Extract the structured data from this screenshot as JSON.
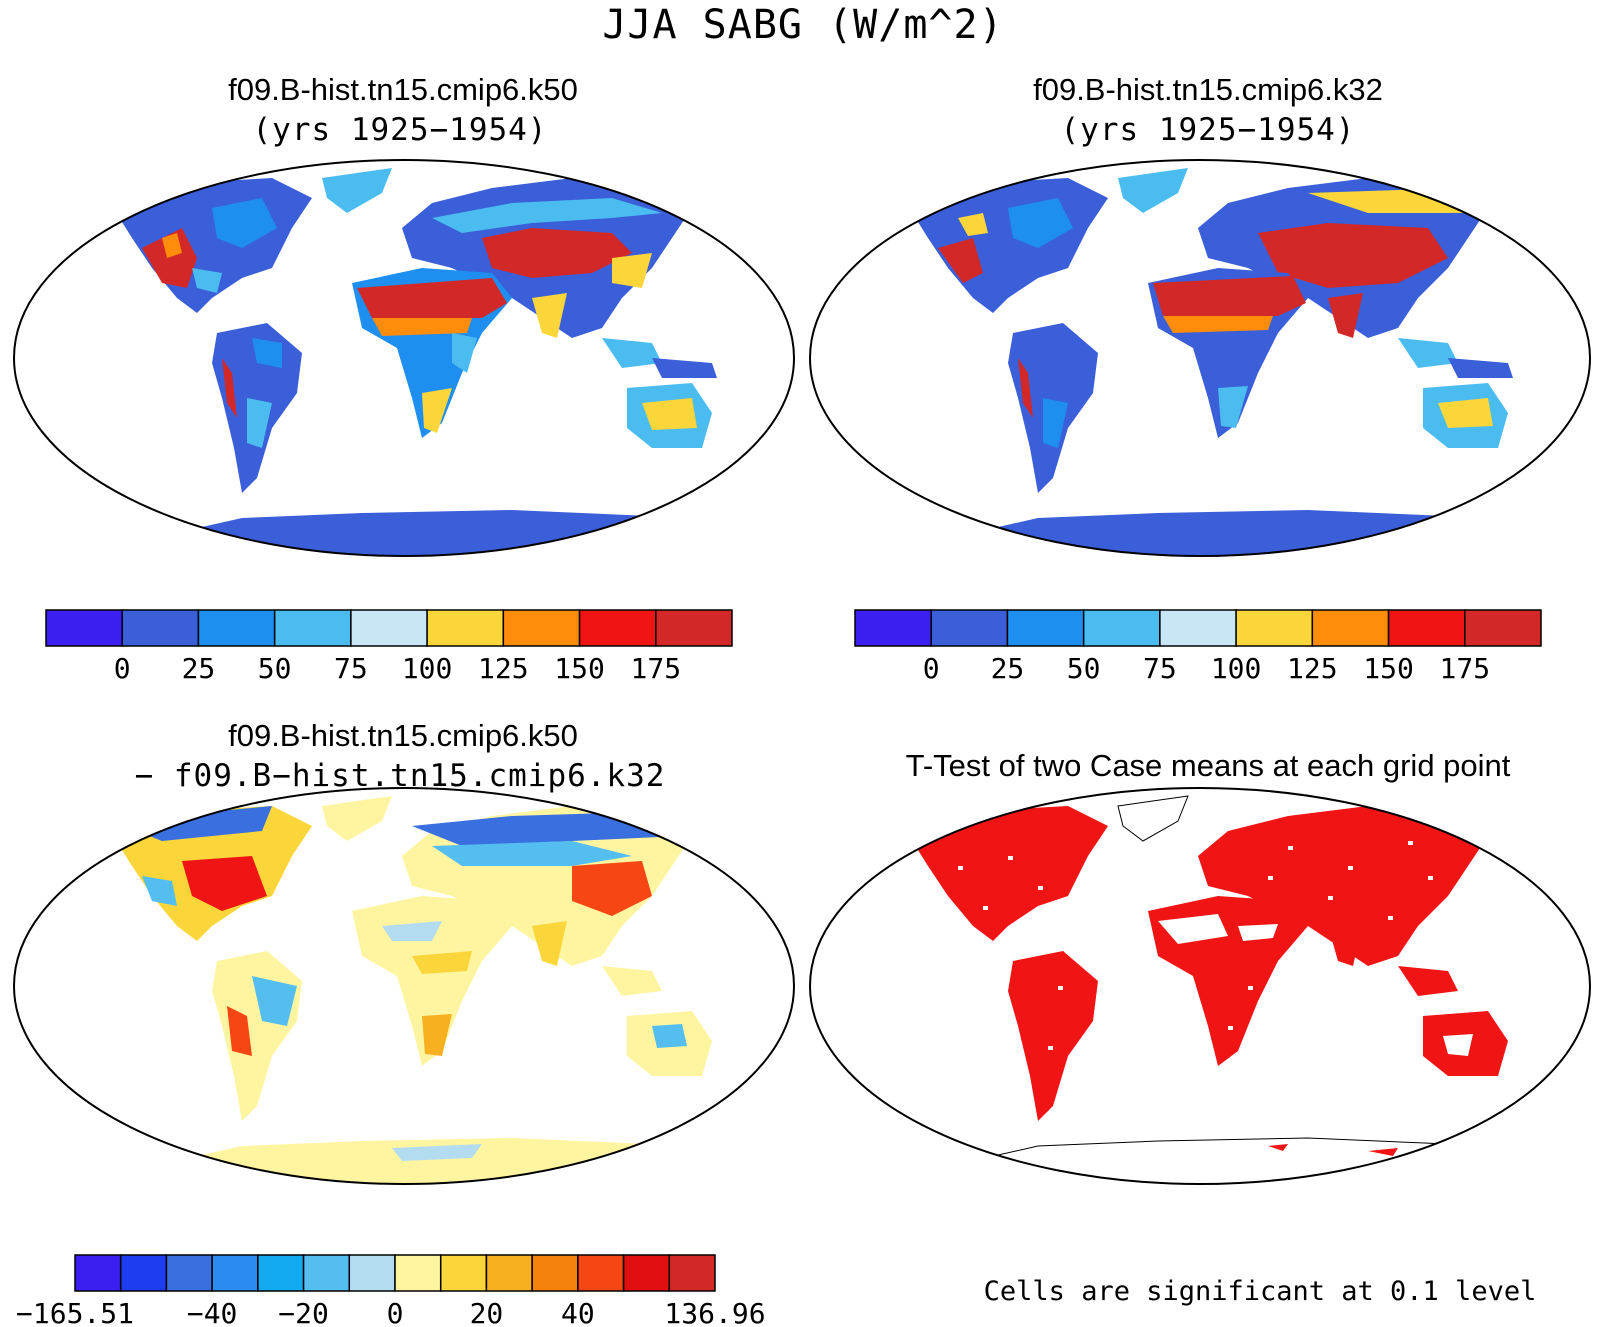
{
  "title": "JJA SABG (W/m^2)",
  "panels": [
    {
      "title": "f09.B-hist.tn15.cmip6.k50",
      "subtitle": "(yrs 1925−1954)"
    },
    {
      "title": "f09.B-hist.tn15.cmip6.k32",
      "subtitle": "(yrs 1925−1954)"
    },
    {
      "title": "f09.B-hist.tn15.cmip6.k50",
      "subtitle": "− f09.B−hist.tn15.cmip6.k32"
    },
    {
      "title": "T-Test of two Case means at each grid point",
      "subtitle": ""
    }
  ],
  "colorbars": {
    "abs": {
      "colors": [
        "#3b1ef0",
        "#3a5fd9",
        "#1e8ff0",
        "#4bbcf0",
        "#c8e6f5",
        "#fbd63a",
        "#ff8c0a",
        "#f01414",
        "#d22828"
      ],
      "labels": [
        "0",
        "25",
        "50",
        "75",
        "100",
        "125",
        "150",
        "175"
      ]
    },
    "diff": {
      "colors": [
        "#3b1ef0",
        "#1e3cf0",
        "#3a6fe0",
        "#2a8cf0",
        "#14aaf0",
        "#55bef0",
        "#b4dcf0",
        "#fff5a0",
        "#fbd63a",
        "#f7b020",
        "#f5820a",
        "#f54614",
        "#e01010",
        "#d22828"
      ],
      "labels": [
        "−165.51",
        "−40",
        "−20",
        "0",
        "20",
        "40",
        "136.96"
      ]
    }
  },
  "significance_note": "Cells are significant at 0.1 level",
  "map_colors": {
    "land_low": "#3a5fd9",
    "land_mid": "#1e8ff0",
    "land_light": "#4bbcf0",
    "desert": "#d22828",
    "warm": "#fbd63a",
    "orange": "#ff8c0a",
    "diff_neutral": "#fff5a0",
    "signif": "#f01414"
  }
}
